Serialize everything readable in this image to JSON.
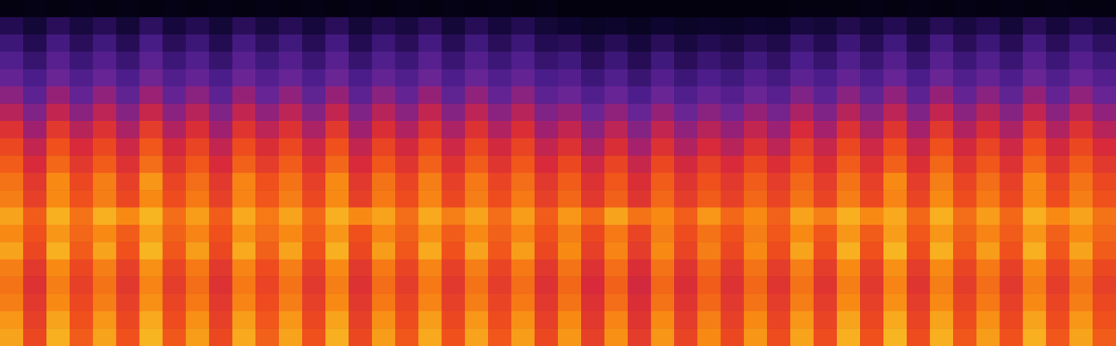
{
  "chart_data": {
    "type": "heatmap",
    "tick_labels": false,
    "grid": false,
    "zlim": [
      0,
      100
    ],
    "values": [
      [
        3,
        4,
        3,
        4,
        3,
        4,
        3,
        4,
        3,
        4,
        3,
        4,
        3,
        4,
        3,
        4,
        3,
        4,
        3,
        4,
        3,
        4,
        3,
        4,
        2,
        2,
        2,
        2,
        2,
        2,
        2,
        2,
        2,
        2,
        3,
        3,
        3,
        4,
        3,
        4,
        3,
        4,
        3,
        4,
        3,
        4,
        3,
        3
      ],
      [
        18,
        12,
        20,
        14,
        19,
        12,
        21,
        13,
        18,
        12,
        20,
        14,
        19,
        13,
        20,
        12,
        18,
        14,
        20,
        12,
        19,
        13,
        18,
        12,
        10,
        8,
        9,
        7,
        10,
        8,
        9,
        8,
        10,
        9,
        14,
        12,
        17,
        13,
        18,
        12,
        19,
        14,
        18,
        12,
        20,
        13,
        18,
        14
      ],
      [
        26,
        18,
        28,
        20,
        27,
        19,
        29,
        20,
        26,
        18,
        28,
        21,
        27,
        19,
        28,
        18,
        26,
        20,
        28,
        19,
        27,
        20,
        26,
        18,
        20,
        14,
        19,
        13,
        20,
        14,
        18,
        15,
        20,
        16,
        24,
        18,
        26,
        19,
        27,
        18,
        28,
        20,
        26,
        19,
        28,
        20,
        27,
        21
      ],
      [
        32,
        24,
        34,
        26,
        33,
        25,
        35,
        26,
        32,
        24,
        34,
        27,
        33,
        25,
        34,
        24,
        32,
        26,
        34,
        25,
        33,
        26,
        32,
        24,
        27,
        20,
        26,
        19,
        27,
        20,
        25,
        21,
        27,
        22,
        30,
        24,
        32,
        25,
        33,
        24,
        34,
        26,
        32,
        25,
        34,
        26,
        33,
        27
      ],
      [
        38,
        30,
        40,
        32,
        39,
        31,
        41,
        32,
        38,
        30,
        40,
        33,
        39,
        31,
        40,
        30,
        38,
        32,
        40,
        31,
        39,
        32,
        38,
        30,
        33,
        26,
        32,
        25,
        33,
        26,
        31,
        27,
        33,
        28,
        36,
        30,
        38,
        31,
        39,
        30,
        40,
        32,
        38,
        31,
        40,
        32,
        39,
        33
      ],
      [
        46,
        36,
        48,
        38,
        47,
        37,
        49,
        38,
        46,
        36,
        48,
        39,
        47,
        37,
        48,
        36,
        46,
        38,
        48,
        37,
        47,
        38,
        46,
        36,
        40,
        32,
        39,
        31,
        40,
        32,
        38,
        33,
        40,
        34,
        44,
        36,
        46,
        37,
        47,
        36,
        48,
        38,
        46,
        37,
        48,
        38,
        47,
        39
      ],
      [
        54,
        44,
        56,
        46,
        55,
        45,
        57,
        46,
        54,
        44,
        56,
        47,
        55,
        45,
        56,
        44,
        54,
        46,
        56,
        45,
        55,
        46,
        54,
        44,
        48,
        40,
        47,
        39,
        48,
        40,
        46,
        41,
        48,
        42,
        52,
        44,
        54,
        45,
        55,
        44,
        56,
        46,
        54,
        45,
        56,
        46,
        55,
        47
      ],
      [
        62,
        50,
        64,
        54,
        62,
        52,
        65,
        53,
        61,
        50,
        63,
        55,
        62,
        52,
        64,
        50,
        61,
        53,
        63,
        52,
        62,
        53,
        61,
        50,
        56,
        46,
        55,
        45,
        56,
        47,
        54,
        48,
        56,
        49,
        60,
        51,
        62,
        52,
        63,
        51,
        64,
        53,
        61,
        52,
        64,
        53,
        62,
        54
      ],
      [
        68,
        56,
        70,
        60,
        68,
        58,
        71,
        59,
        67,
        56,
        69,
        61,
        68,
        58,
        70,
        56,
        67,
        59,
        69,
        58,
        68,
        59,
        67,
        56,
        62,
        52,
        61,
        51,
        62,
        53,
        60,
        54,
        62,
        55,
        66,
        57,
        68,
        58,
        69,
        57,
        70,
        59,
        67,
        58,
        70,
        59,
        68,
        60
      ],
      [
        72,
        60,
        74,
        64,
        72,
        62,
        75,
        63,
        71,
        60,
        73,
        65,
        72,
        62,
        74,
        60,
        71,
        63,
        73,
        62,
        72,
        63,
        71,
        60,
        68,
        58,
        67,
        57,
        68,
        59,
        66,
        60,
        68,
        61,
        70,
        61,
        72,
        62,
        73,
        61,
        74,
        63,
        71,
        62,
        74,
        63,
        72,
        64
      ],
      [
        76,
        64,
        80,
        68,
        78,
        66,
        82,
        67,
        75,
        64,
        79,
        70,
        76,
        66,
        80,
        64,
        76,
        67,
        78,
        66,
        77,
        67,
        75,
        64,
        72,
        62,
        71,
        61,
        72,
        63,
        70,
        64,
        72,
        65,
        74,
        65,
        76,
        66,
        80,
        65,
        78,
        67,
        75,
        66,
        80,
        67,
        76,
        68
      ],
      [
        78,
        66,
        80,
        70,
        78,
        68,
        80,
        69,
        77,
        66,
        79,
        71,
        78,
        68,
        80,
        66,
        77,
        69,
        79,
        68,
        78,
        69,
        77,
        66,
        74,
        64,
        73,
        63,
        74,
        65,
        72,
        66,
        74,
        67,
        76,
        67,
        78,
        68,
        79,
        67,
        80,
        69,
        77,
        68,
        80,
        69,
        78,
        70
      ],
      [
        84,
        72,
        86,
        76,
        86,
        80,
        87,
        75,
        83,
        72,
        85,
        77,
        84,
        74,
        86,
        80,
        84,
        75,
        85,
        78,
        84,
        75,
        83,
        72,
        82,
        74,
        84,
        76,
        80,
        72,
        82,
        74,
        80,
        73,
        84,
        78,
        86,
        80,
        85,
        74,
        86,
        75,
        83,
        74,
        86,
        80,
        84,
        76
      ],
      [
        80,
        70,
        82,
        74,
        80,
        72,
        83,
        73,
        79,
        70,
        81,
        75,
        80,
        72,
        82,
        70,
        79,
        73,
        81,
        72,
        80,
        73,
        79,
        70,
        78,
        68,
        77,
        67,
        78,
        69,
        76,
        70,
        78,
        71,
        80,
        71,
        82,
        72,
        83,
        71,
        82,
        73,
        79,
        72,
        82,
        73,
        80,
        74
      ],
      [
        84,
        68,
        86,
        72,
        84,
        70,
        87,
        71,
        83,
        68,
        85,
        73,
        84,
        70,
        86,
        68,
        83,
        71,
        85,
        70,
        84,
        71,
        83,
        68,
        80,
        66,
        79,
        65,
        80,
        67,
        78,
        68,
        80,
        69,
        84,
        69,
        86,
        70,
        87,
        69,
        86,
        71,
        83,
        70,
        86,
        71,
        84,
        72
      ],
      [
        78,
        64,
        80,
        68,
        78,
        66,
        81,
        67,
        77,
        64,
        79,
        69,
        78,
        66,
        80,
        64,
        77,
        67,
        79,
        66,
        78,
        67,
        77,
        64,
        76,
        62,
        75,
        61,
        76,
        63,
        74,
        64,
        76,
        65,
        78,
        65,
        80,
        66,
        81,
        65,
        80,
        67,
        77,
        66,
        80,
        67,
        78,
        68
      ],
      [
        76,
        62,
        78,
        66,
        76,
        64,
        79,
        65,
        75,
        62,
        77,
        67,
        76,
        64,
        78,
        62,
        75,
        65,
        77,
        64,
        76,
        65,
        75,
        62,
        74,
        60,
        73,
        59,
        74,
        61,
        72,
        62,
        74,
        63,
        76,
        63,
        78,
        64,
        79,
        63,
        78,
        65,
        75,
        64,
        78,
        65,
        76,
        66
      ],
      [
        78,
        64,
        80,
        68,
        78,
        66,
        81,
        67,
        77,
        64,
        79,
        69,
        78,
        66,
        80,
        64,
        77,
        67,
        79,
        66,
        78,
        67,
        77,
        64,
        76,
        62,
        75,
        61,
        76,
        63,
        74,
        64,
        76,
        65,
        78,
        65,
        80,
        66,
        81,
        65,
        80,
        67,
        77,
        66,
        80,
        67,
        78,
        68
      ],
      [
        82,
        66,
        84,
        70,
        82,
        68,
        85,
        69,
        81,
        66,
        83,
        71,
        82,
        68,
        84,
        66,
        81,
        69,
        83,
        68,
        82,
        69,
        81,
        66,
        80,
        64,
        79,
        63,
        80,
        65,
        78,
        66,
        80,
        67,
        82,
        67,
        84,
        68,
        85,
        67,
        84,
        69,
        81,
        68,
        84,
        69,
        82,
        70
      ],
      [
        84,
        68,
        86,
        72,
        84,
        70,
        87,
        71,
        83,
        68,
        85,
        73,
        84,
        70,
        86,
        68,
        83,
        71,
        85,
        70,
        84,
        71,
        83,
        68,
        82,
        66,
        81,
        65,
        82,
        67,
        80,
        68,
        82,
        69,
        84,
        69,
        86,
        70,
        87,
        69,
        86,
        71,
        83,
        70,
        86,
        71,
        84,
        72
      ]
    ]
  }
}
